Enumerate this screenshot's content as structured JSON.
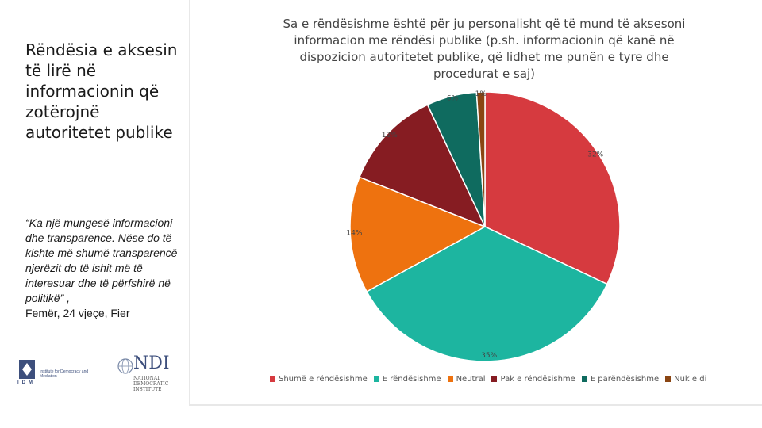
{
  "left": {
    "title": "Rëndësia e aksesin të lirë në informacionin që zotërojnë autoritetet publike",
    "quote": "“Ka një mungesë informacioni dhe transparence. Nëse do të kishte më shumë transparencë njerëzit do të ishit më të interesuar dhe të përfshirë në politikë” ,",
    "attribution": "Femër, 24 vjeçe, Fier"
  },
  "logos": {
    "idm_name": "Institute for Democracy and Mediation",
    "idm_letters": "IDM",
    "ndi_name": "NDI",
    "ndi_sub": "NATIONAL DEMOCRATIC INSTITUTE"
  },
  "chart_data": {
    "type": "pie",
    "title": "Sa e rëndësishme është për ju personalisht që të mund të aksesoni informacion me rëndësi publike (p.sh. informacionin që kanë në dispozicion autoritetet publike, që lidhet me punën e tyre dhe procedurat e saj)",
    "slices": [
      {
        "name": "Shumë e rëndësishme",
        "value": 32,
        "label": "32%",
        "color": "#d63a3f"
      },
      {
        "name": "E rëndësishme",
        "value": 35,
        "label": "35%",
        "color": "#1db5a0"
      },
      {
        "name": "Neutral",
        "value": 14,
        "label": "14%",
        "color": "#ee720f"
      },
      {
        "name": "Pak e rëndësishme",
        "value": 12,
        "label": "12%",
        "color": "#861c22"
      },
      {
        "name": "E parëndësishme",
        "value": 6,
        "label": "6%",
        "color": "#0f6b5f"
      },
      {
        "name": "Nuk e di",
        "value": 1,
        "label": "1%",
        "color": "#8a4513"
      }
    ],
    "legend_position": "bottom"
  }
}
